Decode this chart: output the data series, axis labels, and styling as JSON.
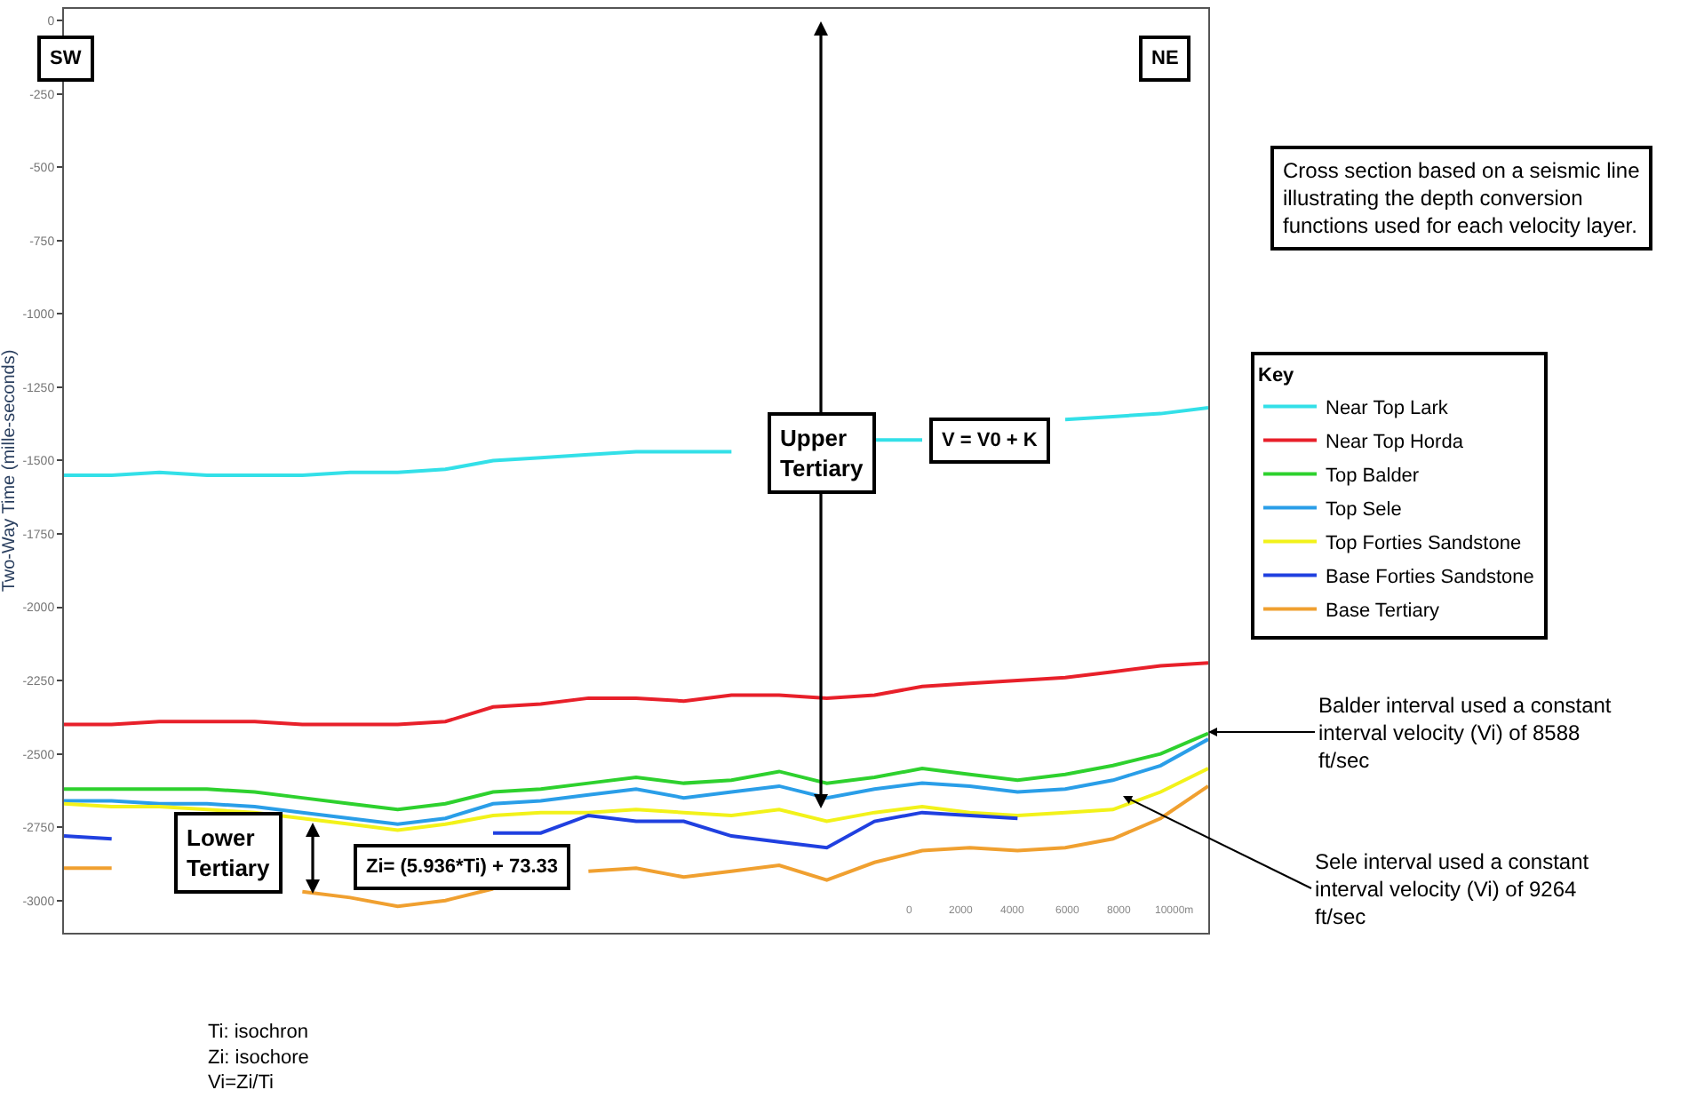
{
  "chart_data": {
    "type": "line",
    "ylabel": "Two-Way Time (mille-seconds)",
    "legend_title": "Key",
    "legend": "right",
    "marker": "none",
    "line_style": "solid",
    "ylim": [
      -3110,
      40
    ],
    "yticks": [
      0,
      -250,
      -500,
      -750,
      -1000,
      -1250,
      -1500,
      -1750,
      -2000,
      -2250,
      -2500,
      -2750,
      -3000
    ],
    "categories": [
      null,
      null,
      null,
      null,
      null,
      null,
      null,
      null,
      null,
      null,
      null,
      null,
      null,
      null,
      null,
      null,
      null,
      null,
      null,
      null,
      null,
      null,
      null,
      null,
      null
    ],
    "series": [
      {
        "name": "Near Top Lark",
        "color": "#33e0e8",
        "values": [
          -1550,
          -1550,
          -1540,
          -1550,
          -1550,
          -1550,
          -1540,
          -1540,
          -1530,
          -1500,
          -1490,
          -1480,
          -1470,
          -1470,
          -1470,
          null,
          null,
          -1430,
          -1430,
          null,
          null,
          -1360,
          -1350,
          -1340,
          -1320
        ]
      },
      {
        "name": "Near Top Horda",
        "color": "#e8202a",
        "values": [
          -2400,
          -2400,
          -2390,
          -2390,
          -2390,
          -2400,
          -2400,
          -2400,
          -2390,
          -2340,
          -2330,
          -2310,
          -2310,
          -2320,
          -2300,
          -2300,
          -2310,
          -2300,
          -2270,
          -2260,
          -2250,
          -2240,
          -2220,
          -2200,
          -2190
        ]
      },
      {
        "name": "Top Balder",
        "color": "#2ed12e",
        "values": [
          -2620,
          -2620,
          -2620,
          -2620,
          -2630,
          -2650,
          -2670,
          -2690,
          -2670,
          -2630,
          -2620,
          -2600,
          -2580,
          -2600,
          -2590,
          -2560,
          -2600,
          -2580,
          -2550,
          -2570,
          -2590,
          -2570,
          -2540,
          -2500,
          -2430
        ]
      },
      {
        "name": "Top Sele",
        "color": "#2a9ee8",
        "values": [
          -2660,
          -2660,
          -2670,
          -2670,
          -2680,
          -2700,
          -2720,
          -2740,
          -2720,
          -2670,
          -2660,
          -2640,
          -2620,
          -2650,
          -2630,
          -2610,
          -2650,
          -2620,
          -2600,
          -2610,
          -2630,
          -2620,
          -2590,
          -2540,
          -2450
        ]
      },
      {
        "name": "Top Forties Sandstone",
        "color": "#f2f21a",
        "values": [
          -2670,
          -2680,
          -2680,
          -2690,
          -2700,
          -2720,
          -2740,
          -2760,
          -2740,
          -2710,
          -2700,
          -2700,
          -2690,
          -2700,
          -2710,
          -2690,
          -2730,
          -2700,
          -2680,
          -2700,
          -2710,
          -2700,
          -2690,
          -2630,
          -2550
        ]
      },
      {
        "name": "Base Forties Sandstone",
        "color": "#2040e0",
        "values": [
          -2780,
          -2790,
          null,
          null,
          null,
          null,
          null,
          null,
          null,
          -2770,
          -2770,
          -2710,
          -2730,
          -2730,
          -2780,
          -2800,
          -2820,
          -2730,
          -2700,
          -2710,
          -2720,
          null,
          null,
          null,
          null
        ]
      },
      {
        "name": "Base Tertiary",
        "color": "#f0a030",
        "values": [
          -2890,
          -2890,
          null,
          null,
          null,
          -2970,
          -2990,
          -3020,
          -3000,
          -2960,
          null,
          -2900,
          -2890,
          -2920,
          -2900,
          -2880,
          -2930,
          -2870,
          -2830,
          -2820,
          -2830,
          -2820,
          -2790,
          -2720,
          -2610
        ]
      }
    ],
    "annotations": [
      "SW",
      "NE",
      "Upper\nTertiary",
      "V = V0 + K",
      "Lower\nTertiary",
      "Zi= (5.936*Ti) + 73.33",
      "Cross section based on a seismic line\nillustrating the depth conversion\nfunctions used for each velocity layer.",
      "Balder interval used a constant\ninterval velocity (Vi) of 8588\nft/sec",
      "Sele interval used a constant\ninterval velocity (Vi) of 9264\nft/sec",
      "Ti: isochron\nZi: isochore\nVi=Zi/Ti",
      "0",
      "2000",
      "4000",
      "6000",
      "8000",
      "10000m"
    ]
  }
}
